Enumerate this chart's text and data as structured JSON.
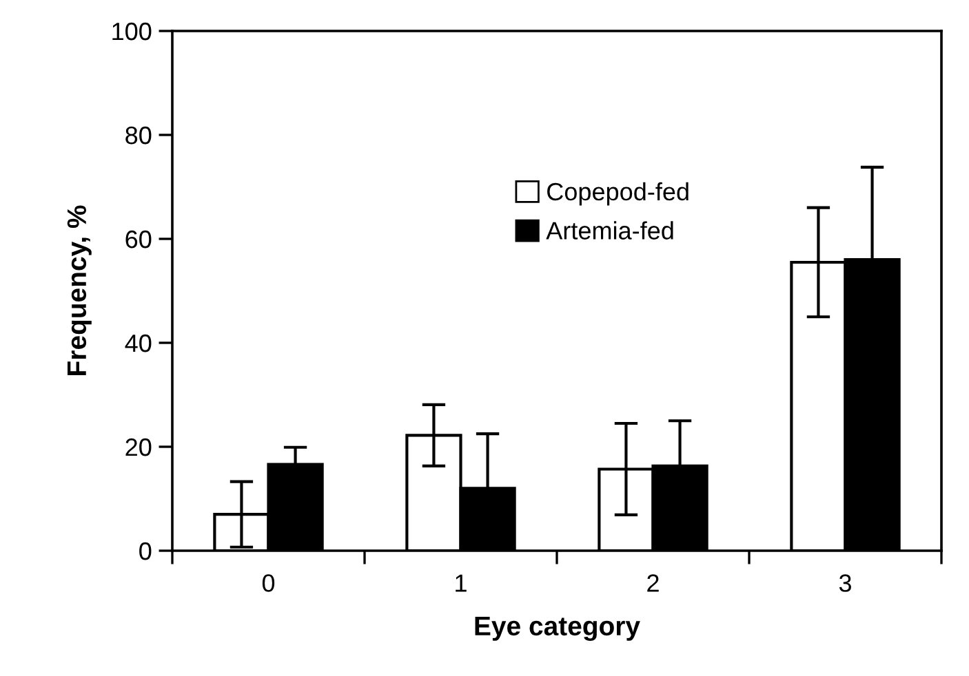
{
  "chart_data": {
    "type": "bar",
    "xlabel": "Eye category",
    "ylabel": "Frequency, %",
    "categories": [
      "0",
      "1",
      "2",
      "3"
    ],
    "series": [
      {
        "name": "Copepod-fed",
        "color": "#ffffff",
        "values": [
          7,
          22.2,
          15.7,
          55.5
        ],
        "errors": [
          6.3,
          5.9,
          8.8,
          10.5
        ]
      },
      {
        "name": "Artemia-fed",
        "color": "#000000",
        "values": [
          16.6,
          12,
          16.3,
          56
        ],
        "errors": [
          3.3,
          10.5,
          8.7,
          17.8
        ]
      }
    ],
    "ylim": [
      0,
      100
    ],
    "yticks": [
      0,
      20,
      40,
      60,
      80,
      100
    ],
    "legend": "center",
    "grid": false
  }
}
